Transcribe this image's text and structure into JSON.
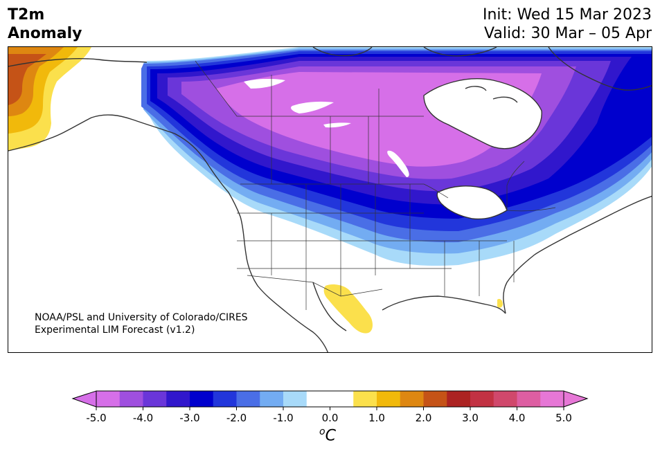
{
  "title": {
    "left_line1": "T2m",
    "left_line2": "Anomaly",
    "init": "Init: Wed 15 Mar 2023",
    "valid": "Valid: 30 Mar – 05 Apr"
  },
  "credit": {
    "line1": "NOAA/PSL and University of Colorado/CIRES",
    "line2": "Experimental LIM Forecast (v1.2)"
  },
  "colorbar": {
    "unit_base": "C",
    "unit_sup": "o",
    "ticks": [
      "-5.0",
      "-4.0",
      "-3.0",
      "-2.0",
      "-1.0",
      "0.0",
      "1.0",
      "2.0",
      "3.0",
      "4.0",
      "5.0"
    ],
    "colors": [
      "#d66fe8",
      "#9f4fdf",
      "#6a36d9",
      "#3117cc",
      "#0000cd",
      "#2236db",
      "#4a6ee6",
      "#73acf2",
      "#a8daf9",
      "#ffffff",
      "#ffffff",
      "#fbe04c",
      "#f1b90b",
      "#de8711",
      "#c55317",
      "#ac2322",
      "#c23243",
      "#d0486c",
      "#dd5ea2",
      "#e677d6"
    ],
    "extend_low_color": "#d66fe8",
    "extend_high_color": "#e677d6"
  }
}
